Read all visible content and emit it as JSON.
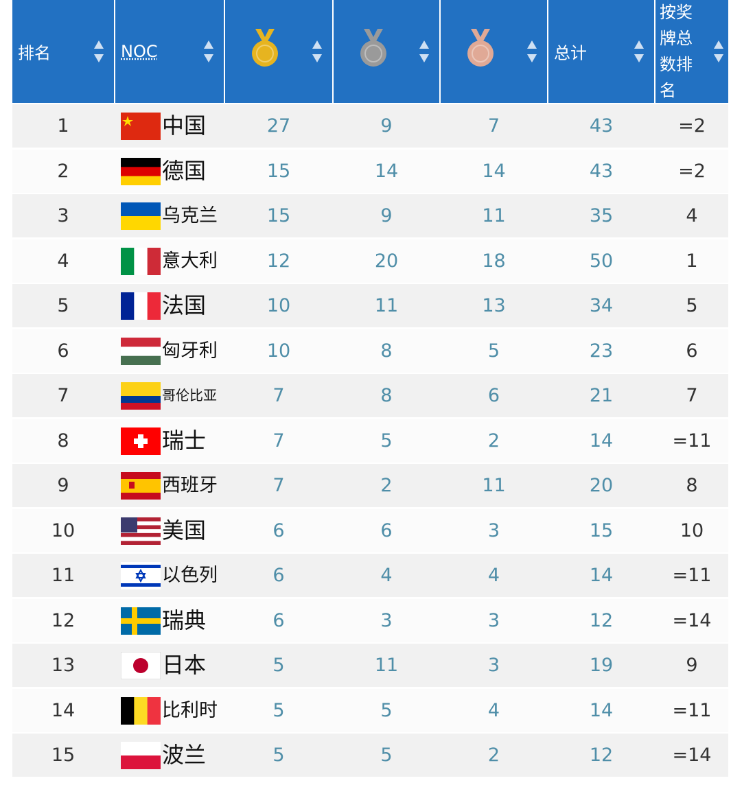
{
  "table": {
    "headers": {
      "rank": "排名",
      "noc": "NOC",
      "total": "总计",
      "medal_rank": "按奖牌总数排名"
    },
    "rows": [
      [
        1,
        "中国",
        27,
        9,
        7,
        43,
        "=2"
      ],
      [
        2,
        "德国",
        15,
        14,
        14,
        43,
        "=2"
      ],
      [
        3,
        "乌克兰",
        15,
        9,
        11,
        35,
        4
      ],
      [
        4,
        "意大利",
        12,
        20,
        18,
        50,
        1
      ],
      [
        5,
        "法国",
        10,
        11,
        13,
        34,
        5
      ],
      [
        6,
        "匈牙利",
        10,
        8,
        5,
        23,
        6
      ],
      [
        7,
        "哥伦比亚",
        7,
        8,
        6,
        21,
        7
      ],
      [
        8,
        "瑞士",
        7,
        5,
        2,
        14,
        "=11"
      ],
      [
        9,
        "西班牙",
        7,
        2,
        11,
        20,
        8
      ],
      [
        10,
        "美国",
        6,
        6,
        3,
        15,
        10
      ],
      [
        11,
        "以色列",
        6,
        4,
        4,
        14,
        "=11"
      ],
      [
        12,
        "瑞典",
        6,
        3,
        3,
        12,
        "=14"
      ],
      [
        13,
        "日本",
        5,
        11,
        3,
        19,
        9
      ],
      [
        14,
        "比利时",
        5,
        5,
        4,
        14,
        "=11"
      ],
      [
        15,
        "波兰",
        5,
        5,
        2,
        12,
        "=14"
      ]
    ]
  }
}
